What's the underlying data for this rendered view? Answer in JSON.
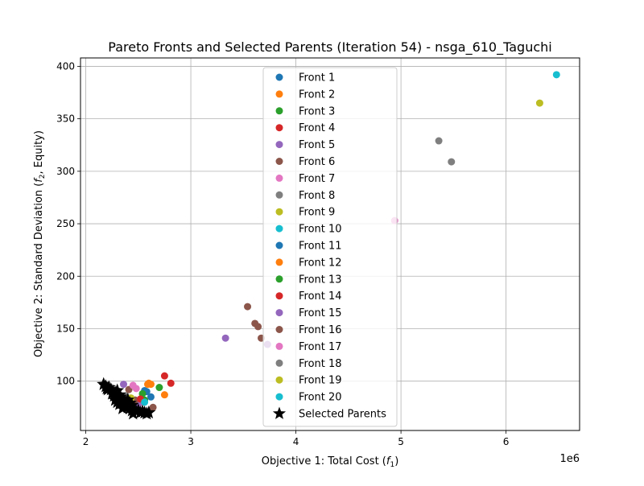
{
  "chart_data": {
    "type": "scatter",
    "title": "Pareto Fronts and Selected Parents (Iteration 54) - nsga_610_Taguchi",
    "xlabel": "Objective 1: Total Cost (",
    "xlabel_sym": "f",
    "xlabel_sub": "1",
    "xlabel_end": ")",
    "ylabel": "Objective 2: Standard Deviation (",
    "ylabel_sym": "f",
    "ylabel_sub": "2",
    "ylabel_end": ", Equity)",
    "x_offset_label": "1e6",
    "x_scale": 1000000,
    "xlim": [
      1950000,
      6700000
    ],
    "ylim": [
      53,
      408
    ],
    "x_ticks": [
      2,
      3,
      4,
      5,
      6
    ],
    "y_ticks": [
      100,
      150,
      200,
      250,
      300,
      350,
      400
    ],
    "grid": true,
    "legend_position": "upper-center",
    "series": [
      {
        "name": "Front 1",
        "color": "#1f77b4",
        "marker": "circle",
        "points": [
          [
            2410000,
            78
          ],
          [
            2440000,
            75
          ],
          [
            2470000,
            73
          ],
          [
            2560000,
            91
          ],
          [
            2620000,
            85
          ]
        ]
      },
      {
        "name": "Front 2",
        "color": "#ff7f0e",
        "marker": "circle",
        "points": [
          [
            2460000,
            80
          ],
          [
            2600000,
            98
          ],
          [
            2620000,
            97
          ],
          [
            2750000,
            87
          ]
        ]
      },
      {
        "name": "Front 3",
        "color": "#2ca02c",
        "marker": "circle",
        "points": [
          [
            2560000,
            82
          ],
          [
            2700000,
            94
          ]
        ]
      },
      {
        "name": "Front 4",
        "color": "#d62728",
        "marker": "circle",
        "points": [
          [
            2750000,
            105
          ],
          [
            2810000,
            98
          ]
        ]
      },
      {
        "name": "Front 5",
        "color": "#9467bd",
        "marker": "circle",
        "points": [
          [
            3330000,
            141
          ],
          [
            2500000,
            78
          ]
        ]
      },
      {
        "name": "Front 6",
        "color": "#8c564b",
        "marker": "circle",
        "points": [
          [
            3540000,
            171
          ],
          [
            3610000,
            155
          ],
          [
            3640000,
            152
          ],
          [
            3670000,
            141
          ],
          [
            2410000,
            92
          ],
          [
            2470000,
            82
          ]
        ]
      },
      {
        "name": "Front 7",
        "color": "#e377c2",
        "marker": "circle",
        "points": [
          [
            4940000,
            253
          ],
          [
            2480000,
            93
          ]
        ]
      },
      {
        "name": "Front 8",
        "color": "#7f7f7f",
        "marker": "circle",
        "points": [
          [
            5360000,
            329
          ],
          [
            5480000,
            309
          ]
        ]
      },
      {
        "name": "Front 9",
        "color": "#bcbd22",
        "marker": "circle",
        "points": [
          [
            6320000,
            365
          ]
        ]
      },
      {
        "name": "Front 10",
        "color": "#17becf",
        "marker": "circle",
        "points": [
          [
            6480000,
            392
          ]
        ]
      },
      {
        "name": "Front 11",
        "color": "#1f77b4",
        "marker": "circle",
        "points": [
          [
            2580000,
            90
          ]
        ]
      },
      {
        "name": "Front 12",
        "color": "#ff7f0e",
        "marker": "circle",
        "points": [
          [
            2590000,
            97
          ]
        ]
      },
      {
        "name": "Front 13",
        "color": "#2ca02c",
        "marker": "circle",
        "points": [
          [
            2540000,
            88
          ]
        ]
      },
      {
        "name": "Front 14",
        "color": "#d62728",
        "marker": "circle",
        "points": [
          [
            2520000,
            83
          ]
        ]
      },
      {
        "name": "Front 15",
        "color": "#9467bd",
        "marker": "circle",
        "points": [
          [
            2360000,
            97
          ],
          [
            3730000,
            135
          ]
        ]
      },
      {
        "name": "Front 16",
        "color": "#8c564b",
        "marker": "circle",
        "points": [
          [
            2640000,
            75
          ]
        ]
      },
      {
        "name": "Front 17",
        "color": "#e377c2",
        "marker": "circle",
        "points": [
          [
            2450000,
            96
          ]
        ]
      },
      {
        "name": "Front 18",
        "color": "#7f7f7f",
        "marker": "circle",
        "points": [
          [
            2380000,
            86
          ]
        ]
      },
      {
        "name": "Front 19",
        "color": "#bcbd22",
        "marker": "circle",
        "points": [
          [
            2430000,
            84
          ]
        ]
      },
      {
        "name": "Front 20",
        "color": "#17becf",
        "marker": "circle",
        "points": [
          [
            2560000,
            80
          ]
        ]
      },
      {
        "name": "Selected Parents",
        "color": "#000000",
        "marker": "star",
        "points": [
          [
            2170000,
            97
          ],
          [
            2190000,
            95
          ],
          [
            2200000,
            93
          ],
          [
            2220000,
            94
          ],
          [
            2240000,
            92
          ],
          [
            2260000,
            90
          ],
          [
            2280000,
            89
          ],
          [
            2300000,
            91
          ],
          [
            2320000,
            87
          ],
          [
            2330000,
            85
          ],
          [
            2280000,
            82
          ],
          [
            2300000,
            80
          ],
          [
            2320000,
            78
          ],
          [
            2340000,
            79
          ],
          [
            2360000,
            76
          ],
          [
            2380000,
            77
          ],
          [
            2400000,
            75
          ],
          [
            2420000,
            74
          ],
          [
            2440000,
            72
          ],
          [
            2460000,
            73
          ],
          [
            2480000,
            71
          ],
          [
            2500000,
            72
          ],
          [
            2520000,
            70
          ],
          [
            2540000,
            71
          ],
          [
            2560000,
            70
          ],
          [
            2580000,
            69
          ],
          [
            2600000,
            70
          ],
          [
            2340000,
            83
          ],
          [
            2360000,
            81
          ],
          [
            2380000,
            80
          ],
          [
            2400000,
            82
          ],
          [
            2420000,
            79
          ],
          [
            2440000,
            77
          ],
          [
            2310000,
            85
          ],
          [
            2350000,
            74
          ],
          [
            2270000,
            86
          ],
          [
            2250000,
            88
          ],
          [
            2210000,
            92
          ],
          [
            2450000,
            69
          ],
          [
            2370000,
            78
          ]
        ]
      }
    ]
  }
}
